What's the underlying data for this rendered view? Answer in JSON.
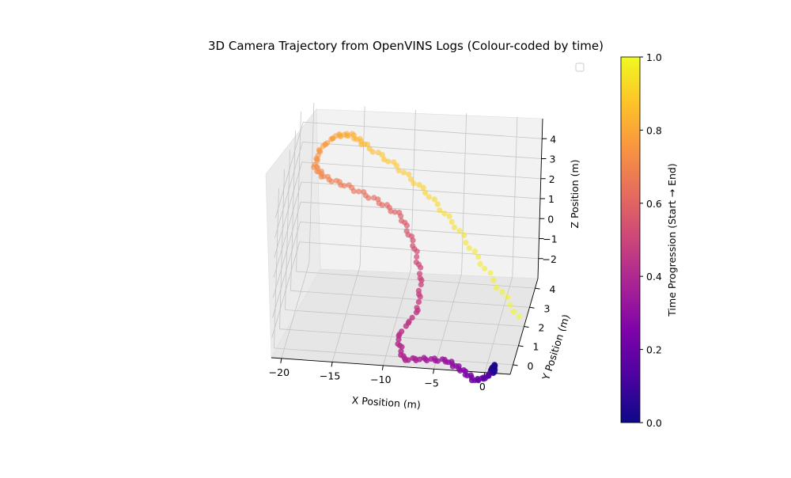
{
  "chart_data": {
    "type": "scatter",
    "projection": "3d",
    "title": "3D Camera Trajectory from OpenVINS Logs (Colour-coded by time)",
    "xlabel": "X Position (m)",
    "ylabel": "Y Position (m)",
    "zlabel": "Z Position (m)",
    "x_ticks": [
      "−20",
      "−15",
      "−10",
      "−5",
      "0"
    ],
    "y_ticks": [
      "0",
      "1",
      "2",
      "3",
      "4"
    ],
    "z_ticks": [
      "−2",
      "−1",
      "0",
      "1",
      "2",
      "3",
      "4"
    ],
    "xlim": [
      -21,
      2.5
    ],
    "ylim": [
      -0.5,
      4.5
    ],
    "zlim": [
      -3,
      5
    ],
    "grid": true,
    "legend": "upper-right (empty)",
    "colormap": "plasma",
    "colorbar": {
      "label": "Time Progression (Start → End)",
      "ticks": [
        "0.0",
        "0.2",
        "0.4",
        "0.6",
        "0.8",
        "1.0"
      ],
      "range": [
        0,
        1
      ]
    },
    "waypoints": [
      {
        "t": 0.0,
        "x": 0.3,
        "y": 0.6,
        "z": -3.9
      },
      {
        "t": 0.08,
        "x": 0.2,
        "y": 0.8,
        "z": -3.9
      },
      {
        "t": 0.16,
        "x": -0.2,
        "y": 0.5,
        "z": -4.2
      },
      {
        "t": 0.22,
        "x": -1.5,
        "y": 0.6,
        "z": -4.5
      },
      {
        "t": 0.28,
        "x": -3.0,
        "y": 0.9,
        "z": -4.3
      },
      {
        "t": 0.32,
        "x": -4.5,
        "y": 1.0,
        "z": -4.0
      },
      {
        "t": 0.36,
        "x": -6.5,
        "y": 0.8,
        "z": -3.8
      },
      {
        "t": 0.4,
        "x": -8.5,
        "y": 0.5,
        "z": -3.6
      },
      {
        "t": 0.43,
        "x": -9.2,
        "y": 0.6,
        "z": -2.6
      },
      {
        "t": 0.46,
        "x": -7.5,
        "y": 1.0,
        "z": -1.6
      },
      {
        "t": 0.5,
        "x": -7.5,
        "y": 1.5,
        "z": -0.4
      },
      {
        "t": 0.54,
        "x": -8.5,
        "y": 1.9,
        "z": 0.8
      },
      {
        "t": 0.58,
        "x": -10.0,
        "y": 2.2,
        "z": 1.9
      },
      {
        "t": 0.62,
        "x": -12.5,
        "y": 2.4,
        "z": 2.4
      },
      {
        "t": 0.66,
        "x": -15.5,
        "y": 2.6,
        "z": 2.8
      },
      {
        "t": 0.7,
        "x": -18.0,
        "y": 2.8,
        "z": 3.0
      },
      {
        "t": 0.73,
        "x": -19.0,
        "y": 3.0,
        "z": 3.3
      },
      {
        "t": 0.76,
        "x": -18.5,
        "y": 3.0,
        "z": 4.2
      },
      {
        "t": 0.79,
        "x": -17.0,
        "y": 3.0,
        "z": 4.9
      },
      {
        "t": 0.82,
        "x": -15.5,
        "y": 3.0,
        "z": 5.0
      },
      {
        "t": 0.85,
        "x": -14.0,
        "y": 3.0,
        "z": 4.5
      },
      {
        "t": 0.88,
        "x": -11.0,
        "y": 3.0,
        "z": 3.6
      },
      {
        "t": 0.91,
        "x": -8.0,
        "y": 3.0,
        "z": 2.4
      },
      {
        "t": 0.94,
        "x": -5.0,
        "y": 3.0,
        "z": 0.8
      },
      {
        "t": 0.97,
        "x": -2.0,
        "y": 3.0,
        "z": -1.2
      },
      {
        "t": 1.0,
        "x": 1.5,
        "y": 3.0,
        "z": -3.5
      }
    ]
  }
}
